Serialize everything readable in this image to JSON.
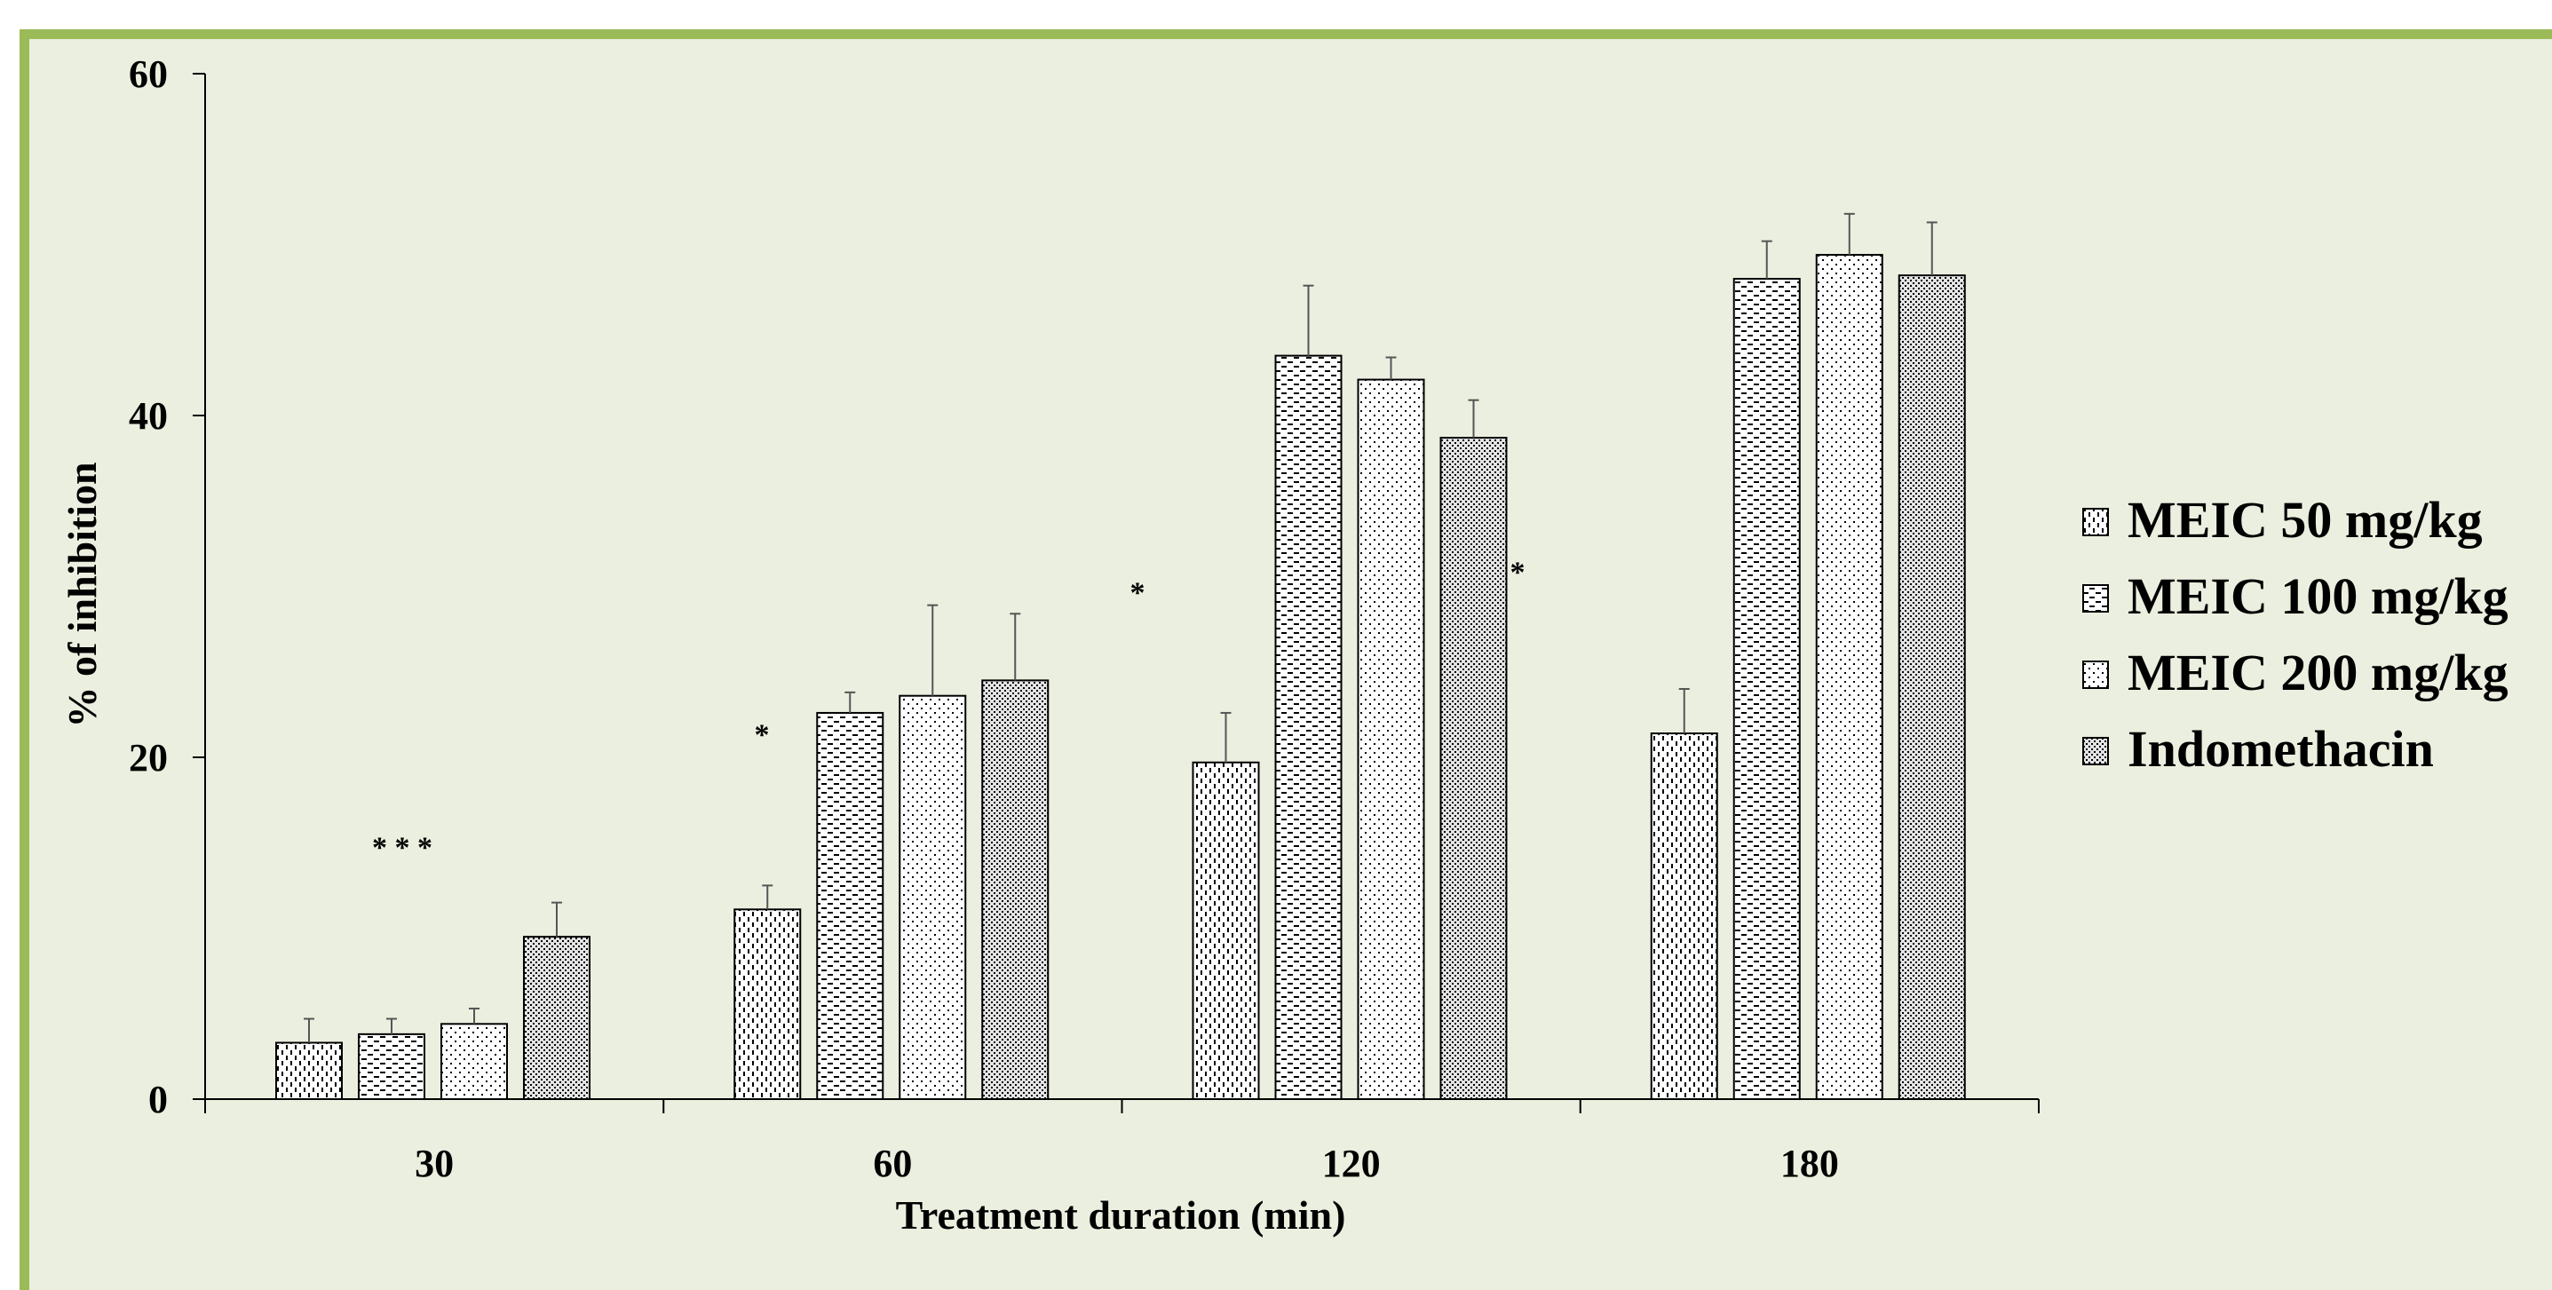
{
  "colors": {
    "frame_border": "#9bbb59",
    "plot_background": "#ebefdf",
    "bar_outline": "#000000",
    "bar_fill": "#ffffff"
  },
  "chart_data": {
    "type": "bar",
    "title": "",
    "xlabel": "Treatment duration (min)",
    "ylabel": "% of inhibition",
    "categories": [
      "30",
      "60",
      "120",
      "180"
    ],
    "ylim": [
      0,
      60
    ],
    "yticks": [
      "0",
      "20",
      "40",
      "60"
    ],
    "grid": false,
    "legend_position": "right",
    "series": [
      {
        "name": "MEIC 50 mg/kg",
        "pattern": "vertical-dashes",
        "values": [
          3.3,
          11.1,
          19.7,
          21.4
        ],
        "errors": [
          1.4,
          1.4,
          2.9,
          2.6
        ]
      },
      {
        "name": "MEIC 100 mg/kg",
        "pattern": "horizontal-dashes",
        "values": [
          3.8,
          22.6,
          43.5,
          48.0
        ],
        "errors": [
          0.9,
          1.2,
          4.1,
          2.2
        ]
      },
      {
        "name": "MEIC 200 mg/kg",
        "pattern": "sparse-dots",
        "values": [
          4.4,
          23.6,
          42.1,
          49.4
        ],
        "errors": [
          0.9,
          5.3,
          1.3,
          2.4
        ]
      },
      {
        "name": "Indomethacin",
        "pattern": "dense-dots",
        "values": [
          9.5,
          24.5,
          38.7,
          48.2
        ],
        "errors": [
          2.0,
          3.9,
          2.2,
          3.1
        ]
      }
    ],
    "annotations": [
      {
        "text": "* * *",
        "category": "30"
      },
      {
        "text": "*",
        "category": "60"
      },
      {
        "text": "*",
        "category": "120"
      },
      {
        "text": "*",
        "category": "120"
      }
    ]
  }
}
